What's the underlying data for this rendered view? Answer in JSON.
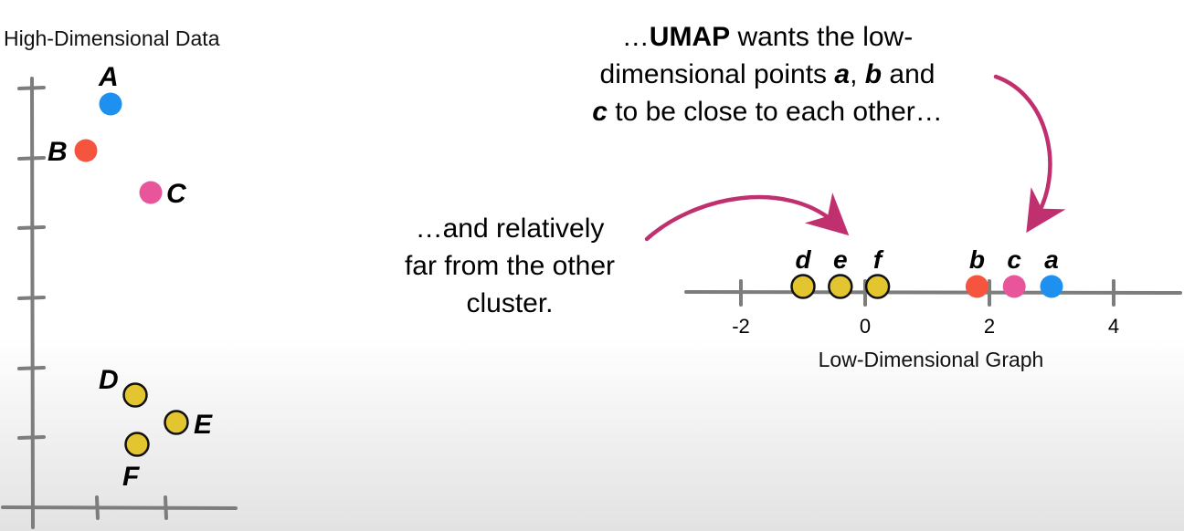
{
  "high_dim": {
    "title": "High-Dimensional Data",
    "points": [
      {
        "label": "A",
        "color": "#1e90f0"
      },
      {
        "label": "B",
        "color": "#f5553f"
      },
      {
        "label": "C",
        "color": "#e8559a"
      },
      {
        "label": "D",
        "color": "#e3c530"
      },
      {
        "label": "E",
        "color": "#e3c530"
      },
      {
        "label": "F",
        "color": "#e3c530"
      }
    ]
  },
  "low_dim": {
    "title": "Low-Dimensional Graph",
    "tick_labels": [
      "-2",
      "0",
      "2",
      "4"
    ],
    "points": [
      {
        "label": "d",
        "x": -1.0,
        "color": "#e3c530"
      },
      {
        "label": "e",
        "x": -0.4,
        "color": "#e3c530"
      },
      {
        "label": "f",
        "x": 0.2,
        "color": "#e3c530"
      },
      {
        "label": "b",
        "x": 1.8,
        "color": "#f5553f"
      },
      {
        "label": "c",
        "x": 2.4,
        "color": "#e8559a"
      },
      {
        "label": "a",
        "x": 3.0,
        "color": "#1e90f0"
      }
    ]
  },
  "annotations": {
    "umap": {
      "prefix": "…",
      "umap": "UMAP",
      "wants": " wants the low-",
      "line2_pre": "dimensional points ",
      "a": "a",
      "comma": ", ",
      "b": "b",
      "and": " and",
      "c": "c",
      "line3_post": " to be close to each other…"
    },
    "far": {
      "line1": "…and relatively",
      "line2": "far from the other",
      "line3": "cluster."
    }
  },
  "arrow_color": "#c0306e"
}
